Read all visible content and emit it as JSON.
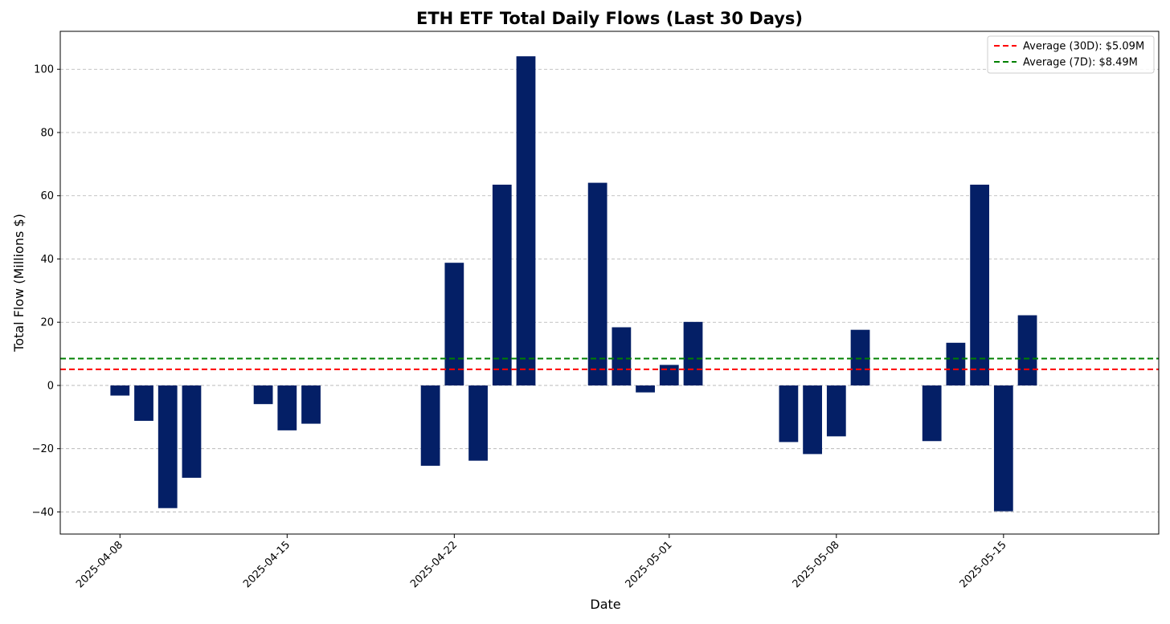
{
  "chart_data": {
    "type": "bar",
    "title": "ETH ETF Total Daily Flows (Last 30 Days)",
    "xlabel": "Date",
    "ylabel": "Total Flow (Millions $)",
    "ylim": [
      -47,
      112
    ],
    "yticks": [
      -40,
      -20,
      0,
      20,
      40,
      60,
      80,
      100
    ],
    "ytick_labels": [
      "−40",
      "−20",
      "0",
      "20",
      "40",
      "60",
      "80",
      "100"
    ],
    "xlim": [
      "2025-04-05.5",
      "2025-05-21.5"
    ],
    "xticks": [
      "2025-04-08",
      "2025-04-15",
      "2025-04-22",
      "2025-05-01",
      "2025-05-08",
      "2025-05-15"
    ],
    "grid": {
      "axis": "y",
      "style": "dashed",
      "color": "#b0b0b0"
    },
    "bar_color": "#041f66",
    "bars": [
      {
        "date": "2025-04-08",
        "value": -3.2
      },
      {
        "date": "2025-04-09",
        "value": -11.2
      },
      {
        "date": "2025-04-10",
        "value": -38.8
      },
      {
        "date": "2025-04-11",
        "value": -29.2
      },
      {
        "date": "2025-04-14",
        "value": -5.9
      },
      {
        "date": "2025-04-15",
        "value": -14.2
      },
      {
        "date": "2025-04-16",
        "value": -12.1
      },
      {
        "date": "2025-04-21",
        "value": -25.4
      },
      {
        "date": "2025-04-22",
        "value": 38.8
      },
      {
        "date": "2025-04-23",
        "value": -23.8
      },
      {
        "date": "2025-04-24",
        "value": 63.5
      },
      {
        "date": "2025-04-25",
        "value": 104.1
      },
      {
        "date": "2025-04-28",
        "value": 64.1
      },
      {
        "date": "2025-04-29",
        "value": 18.4
      },
      {
        "date": "2025-04-30",
        "value": -2.2
      },
      {
        "date": "2025-05-01",
        "value": 6.5
      },
      {
        "date": "2025-05-02",
        "value": 20.1
      },
      {
        "date": "2025-05-06",
        "value": -17.9
      },
      {
        "date": "2025-05-07",
        "value": -21.7
      },
      {
        "date": "2025-05-08",
        "value": -16.1
      },
      {
        "date": "2025-05-09",
        "value": 17.6
      },
      {
        "date": "2025-05-12",
        "value": -17.6
      },
      {
        "date": "2025-05-13",
        "value": 13.5
      },
      {
        "date": "2025-05-14",
        "value": 63.5
      },
      {
        "date": "2025-05-15",
        "value": -39.8
      },
      {
        "date": "2025-05-16",
        "value": 22.2
      }
    ],
    "hlines": [
      {
        "name": "Average (30D): $5.09M",
        "value": 5.09,
        "color": "#ff0000"
      },
      {
        "name": "Average (7D): $8.49M",
        "value": 8.49,
        "color": "#008000"
      }
    ],
    "legend": {
      "placement": "upper right"
    }
  }
}
